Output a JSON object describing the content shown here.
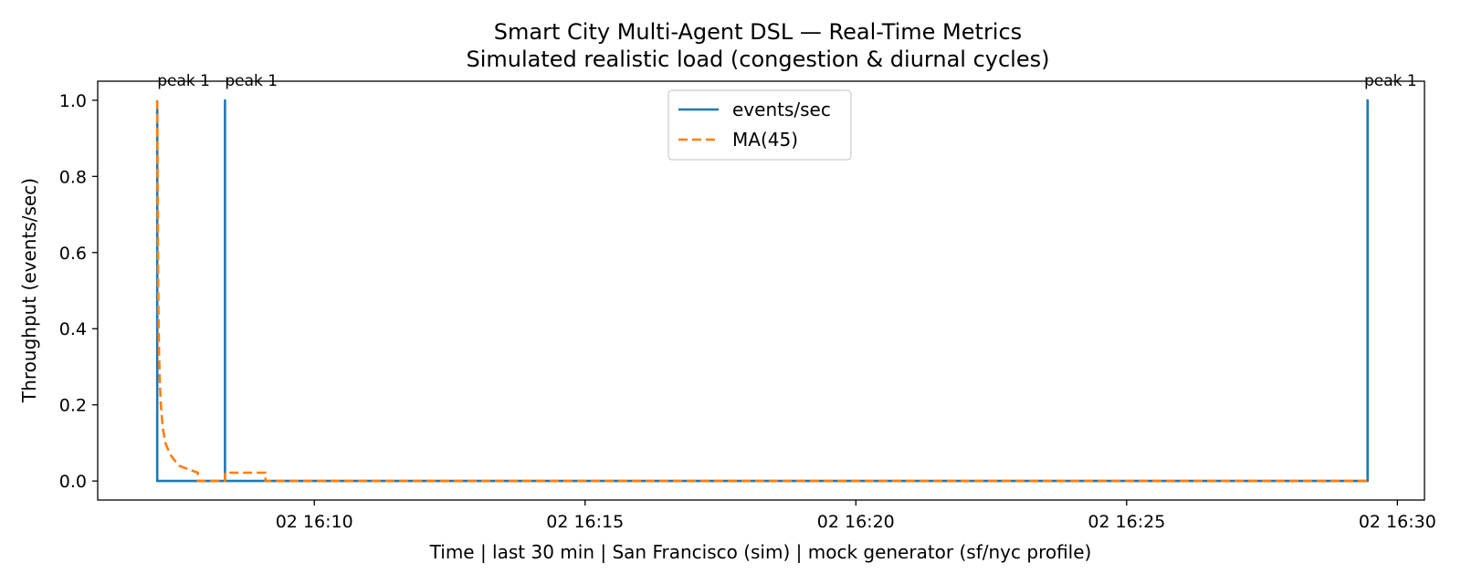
{
  "chart_data": {
    "type": "line",
    "title": "Smart City Multi-Agent DSL — Real-Time Metrics",
    "subtitle": "Simulated realistic load (congestion & diurnal cycles)",
    "xlabel": "Time  |  last 30 min  |  San Francisco (sim)  |  mock generator (sf/nyc profile)",
    "ylabel": "Throughput (events/sec)",
    "xlim": [
      "02 16:06:00",
      "02 16:30:30"
    ],
    "ylim": [
      -0.05,
      1.05
    ],
    "x_ticks": [
      {
        "t": "02 16:10",
        "label": "02 16:10"
      },
      {
        "t": "02 16:15",
        "label": "02 16:15"
      },
      {
        "t": "02 16:20",
        "label": "02 16:20"
      },
      {
        "t": "02 16:25",
        "label": "02 16:25"
      },
      {
        "t": "02 16:30",
        "label": "02 16:30"
      }
    ],
    "y_ticks": [
      {
        "v": 0.0,
        "label": "0.0"
      },
      {
        "v": 0.2,
        "label": "0.2"
      },
      {
        "v": 0.4,
        "label": "0.4"
      },
      {
        "v": 0.6,
        "label": "0.6"
      },
      {
        "v": 0.8,
        "label": "0.8"
      },
      {
        "v": 1.0,
        "label": "1.0"
      }
    ],
    "grid": false,
    "legend_position": "upper center",
    "series": [
      {
        "name": "events/sec",
        "color": "#1f77b4",
        "style": "solid",
        "points": [
          [
            "02 16:07:06",
            1.0
          ],
          [
            "02 16:07:06",
            0.0
          ],
          [
            "02 16:08:21",
            0.0
          ],
          [
            "02 16:08:21",
            1.0
          ],
          [
            "02 16:08:21",
            0.0
          ],
          [
            "02 16:29:27",
            0.0
          ],
          [
            "02 16:29:27",
            1.0
          ],
          [
            "02 16:29:27",
            0.0
          ]
        ]
      },
      {
        "name": "MA(45)",
        "color": "#ff7f0e",
        "style": "dashed",
        "points": [
          [
            "02 16:07:06",
            1.0
          ],
          [
            "02 16:07:07",
            0.5
          ],
          [
            "02 16:07:08",
            0.33
          ],
          [
            "02 16:07:09",
            0.25
          ],
          [
            "02 16:07:10",
            0.2
          ],
          [
            "02 16:07:12",
            0.14
          ],
          [
            "02 16:07:15",
            0.1
          ],
          [
            "02 16:07:20",
            0.07
          ],
          [
            "02 16:07:30",
            0.04
          ],
          [
            "02 16:07:45",
            0.027
          ],
          [
            "02 16:07:51",
            0.022
          ],
          [
            "02 16:07:51",
            0.0
          ],
          [
            "02 16:08:21",
            0.0
          ],
          [
            "02 16:08:21",
            0.022
          ],
          [
            "02 16:09:06",
            0.022
          ],
          [
            "02 16:09:06",
            0.0
          ],
          [
            "02 16:29:27",
            0.0
          ]
        ]
      }
    ],
    "annotations": [
      {
        "text": "peak 1",
        "t": "02 16:07:06",
        "v": 1.0
      },
      {
        "text": "peak 1",
        "t": "02 16:08:21",
        "v": 1.0
      },
      {
        "text": "peak 1",
        "t": "02 16:29:27",
        "v": 1.0
      }
    ]
  }
}
